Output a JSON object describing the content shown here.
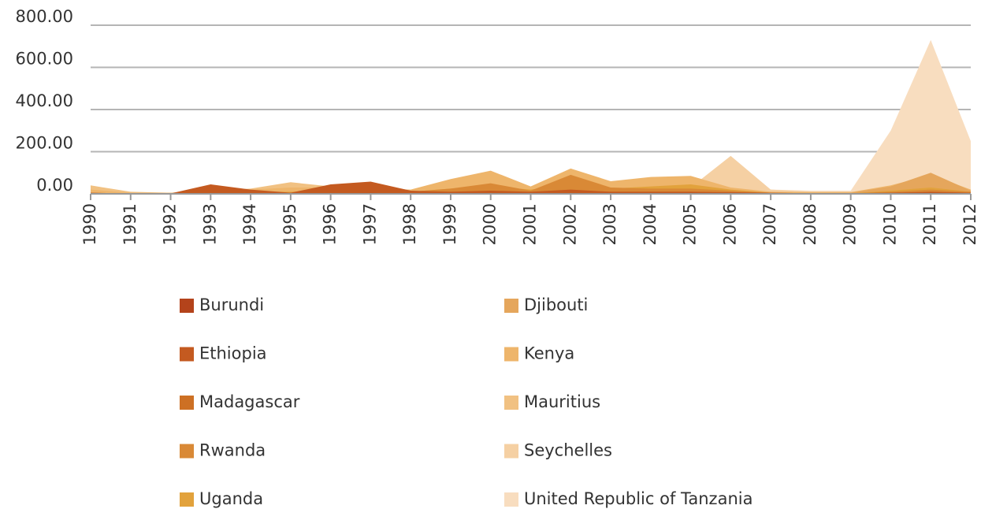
{
  "chart_data": {
    "type": "area",
    "categories": [
      "1990",
      "1991",
      "1992",
      "1993",
      "1994",
      "1995",
      "1996",
      "1997",
      "1998",
      "1999",
      "2000",
      "2001",
      "2002",
      "2003",
      "2004",
      "2005",
      "2006",
      "2007",
      "2008",
      "2009",
      "2010",
      "2011",
      "2012"
    ],
    "ylim": [
      0,
      800
    ],
    "yticks": [
      {
        "value": 0,
        "label": "0.00"
      },
      {
        "value": 200,
        "label": "200.00"
      },
      {
        "value": 400,
        "label": "400.00"
      },
      {
        "value": 600,
        "label": "600.00"
      },
      {
        "value": 800,
        "label": "800.00"
      }
    ],
    "grid": true,
    "series": [
      {
        "name": "Burundi",
        "color": "#b4431b",
        "values": [
          2,
          1,
          1,
          3,
          3,
          2,
          3,
          4,
          2,
          2,
          3,
          2,
          3,
          3,
          3,
          4,
          3,
          2,
          2,
          2,
          3,
          4,
          3
        ]
      },
      {
        "name": "Ethiopia",
        "color": "#c45a20",
        "values": [
          5,
          2,
          2,
          45,
          20,
          5,
          45,
          58,
          15,
          10,
          15,
          10,
          20,
          10,
          10,
          10,
          8,
          5,
          3,
          3,
          5,
          10,
          5
        ]
      },
      {
        "name": "Madagascar",
        "color": "#cd7024",
        "values": [
          3,
          2,
          2,
          10,
          5,
          5,
          20,
          15,
          5,
          8,
          10,
          5,
          15,
          10,
          10,
          10,
          5,
          3,
          2,
          2,
          5,
          8,
          5
        ]
      },
      {
        "name": "Rwanda",
        "color": "#d98936",
        "values": [
          5,
          2,
          2,
          10,
          10,
          5,
          15,
          15,
          10,
          25,
          50,
          15,
          90,
          30,
          25,
          25,
          15,
          5,
          3,
          3,
          10,
          20,
          10
        ]
      },
      {
        "name": "Uganda",
        "color": "#e2a23c",
        "values": [
          5,
          2,
          2,
          5,
          10,
          10,
          15,
          10,
          10,
          25,
          35,
          20,
          45,
          25,
          35,
          45,
          20,
          5,
          3,
          3,
          15,
          30,
          10
        ]
      },
      {
        "name": "Djibouti",
        "color": "#e5a65c",
        "values": [
          5,
          2,
          2,
          5,
          5,
          5,
          5,
          5,
          5,
          15,
          30,
          15,
          40,
          25,
          30,
          35,
          15,
          5,
          5,
          5,
          35,
          100,
          15
        ]
      },
      {
        "name": "Kenya",
        "color": "#eeb56b",
        "values": [
          20,
          5,
          5,
          15,
          20,
          30,
          30,
          25,
          20,
          70,
          110,
          35,
          120,
          60,
          80,
          85,
          30,
          10,
          8,
          8,
          40,
          90,
          20
        ]
      },
      {
        "name": "Mauritius",
        "color": "#f1c182",
        "values": [
          40,
          10,
          5,
          15,
          25,
          55,
          35,
          20,
          15,
          40,
          60,
          25,
          60,
          45,
          50,
          50,
          25,
          10,
          8,
          8,
          20,
          40,
          20
        ]
      },
      {
        "name": "Seychelles",
        "color": "#f5d0a3",
        "values": [
          10,
          5,
          5,
          10,
          10,
          15,
          15,
          10,
          10,
          20,
          30,
          15,
          35,
          25,
          30,
          30,
          180,
          20,
          10,
          10,
          25,
          40,
          20
        ]
      },
      {
        "name": "United Republic of Tanzania",
        "color": "#f8ddbf",
        "values": [
          15,
          5,
          5,
          10,
          10,
          20,
          20,
          15,
          10,
          25,
          40,
          20,
          45,
          30,
          40,
          40,
          50,
          20,
          15,
          15,
          300,
          730,
          250
        ]
      }
    ]
  }
}
